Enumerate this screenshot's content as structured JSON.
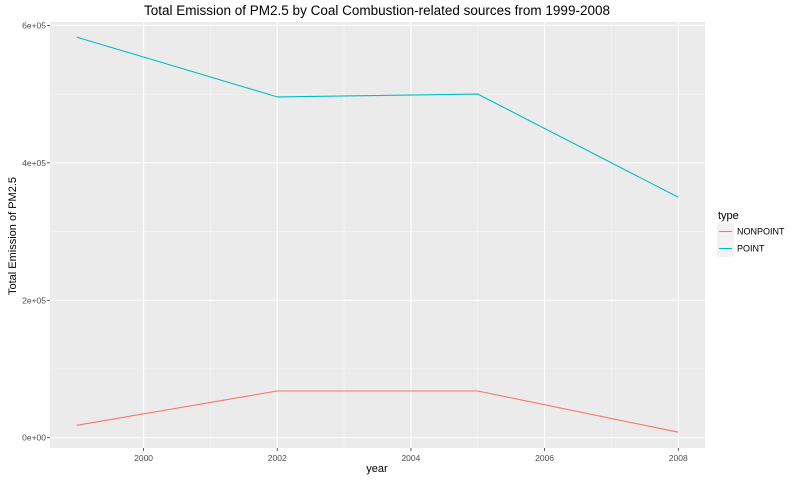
{
  "chart_data": {
    "type": "line",
    "title": "Total Emission of PM2.5 by Coal Combustion-related sources from 1999-2008",
    "xlabel": "year",
    "ylabel": "Total Emission of PM2.5",
    "x": [
      1999,
      2002,
      2005,
      2008
    ],
    "xlim": [
      1998.6,
      2008.4
    ],
    "ylim": [
      -15000,
      605000
    ],
    "xticks": [
      2000,
      2002,
      2004,
      2006,
      2008
    ],
    "xtick_labels": [
      "2000",
      "2002",
      "2004",
      "2006",
      "2008"
    ],
    "yticks": [
      0,
      200000,
      400000,
      600000
    ],
    "ytick_labels": [
      "0e+00",
      "2e+05",
      "4e+05",
      "6e+05"
    ],
    "grid": true,
    "legend": {
      "title": "type",
      "position": "right"
    },
    "series": [
      {
        "name": "NONPOINT",
        "color": "#F8766D",
        "values": [
          18000,
          68000,
          68000,
          8000
        ]
      },
      {
        "name": "POINT",
        "color": "#00BFC4",
        "values": [
          583000,
          496000,
          500000,
          350000
        ]
      }
    ]
  }
}
